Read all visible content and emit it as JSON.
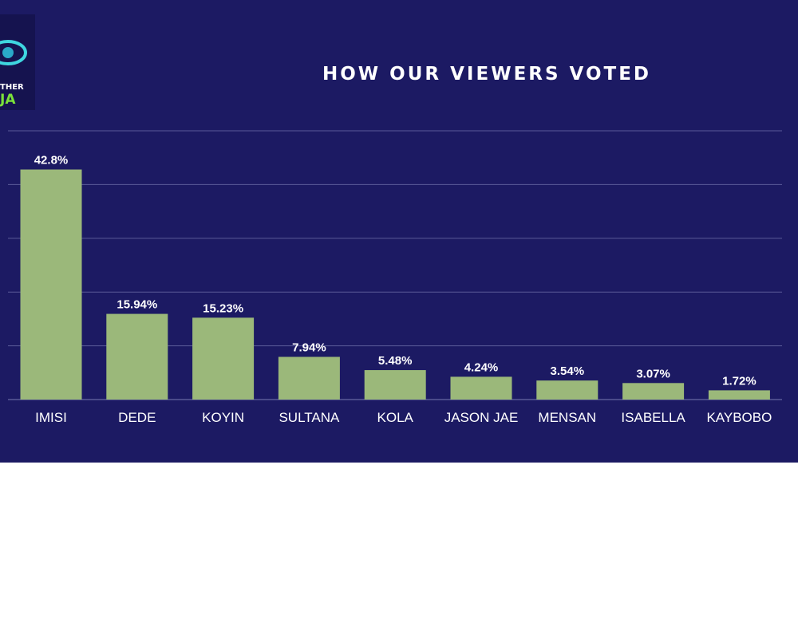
{
  "colors": {
    "background": "#1c1a63",
    "bar": "#9bb87a",
    "gridline": "#5a5a98",
    "text": "#ffffff",
    "logo_accent": "#7be23a"
  },
  "logo": {
    "line1": "THER",
    "line2": "JA"
  },
  "chart_data": {
    "type": "bar",
    "title": "HOW OUR VIEWERS VOTED",
    "xlabel": "",
    "ylabel": "",
    "categories": [
      "IMISI",
      "DEDE",
      "KOYIN",
      "SULTANA",
      "KOLA",
      "JASON JAE",
      "MENSAN",
      "ISABELLA",
      "KAYBOBO"
    ],
    "values": [
      42.8,
      15.94,
      15.23,
      7.94,
      5.48,
      4.24,
      3.54,
      3.07,
      1.72
    ],
    "value_labels": [
      "42.8%",
      "15.94%",
      "15.23%",
      "7.94%",
      "5.48%",
      "4.24%",
      "3.54%",
      "3.07%",
      "1.72%"
    ],
    "ylim": [
      0,
      50
    ],
    "grid": true,
    "legend": "none"
  }
}
